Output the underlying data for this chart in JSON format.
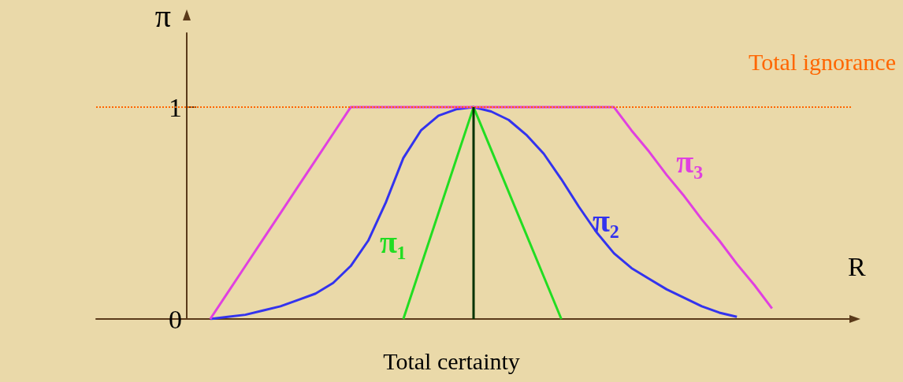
{
  "chart_data": {
    "type": "line",
    "xlabel": "R",
    "ylabel": "π",
    "annotations": [
      "Total certainty"
    ],
    "categories": [
      null,
      null,
      null,
      null,
      null,
      null,
      null,
      null,
      null,
      null,
      null,
      null,
      null,
      null,
      null,
      null,
      null,
      null,
      null,
      null,
      null,
      null,
      null,
      null,
      null,
      null,
      null,
      null,
      null,
      null,
      null,
      null,
      null,
      null,
      null,
      null,
      null,
      null,
      null,
      null,
      null,
      null,
      null
    ],
    "series": [
      {
        "name": "π₁",
        "color": "#22dd22",
        "values": [
          null,
          null,
          null,
          null,
          null,
          null,
          null,
          null,
          null,
          null,
          null,
          null,
          null,
          null,
          null,
          null,
          null,
          0,
          0.25,
          0.5,
          0.75,
          1,
          0.8,
          0.6,
          0.4,
          0.2,
          0,
          null,
          null,
          null,
          null,
          null,
          null,
          null,
          null,
          null,
          null,
          null,
          null,
          null,
          null,
          null,
          null
        ]
      },
      {
        "name": "π₂",
        "color": "#3333ee",
        "values": [
          null,
          null,
          null,
          null,
          null,
          null,
          0,
          0.01,
          0.02,
          0.04,
          0.06,
          0.09,
          0.12,
          0.17,
          0.25,
          0.37,
          0.55,
          0.76,
          0.89,
          0.96,
          0.99,
          1,
          0.98,
          0.94,
          0.87,
          0.78,
          0.66,
          0.53,
          0.41,
          0.31,
          0.24,
          0.19,
          0.14,
          0.1,
          0.06,
          0.03,
          0.01,
          null,
          null,
          null,
          null,
          null,
          null
        ]
      },
      {
        "name": "π₃",
        "color": "#e040e0",
        "values": [
          null,
          null,
          null,
          null,
          null,
          null,
          0,
          0.125,
          0.25,
          0.375,
          0.5,
          0.625,
          0.75,
          0.875,
          1,
          1,
          1,
          1,
          1,
          1,
          1,
          1,
          1,
          1,
          1,
          1,
          1,
          1,
          1,
          1,
          0.89,
          0.79,
          0.68,
          0.58,
          0.47,
          0.37,
          0.26,
          0.16,
          0.05,
          null,
          null,
          null,
          null
        ]
      },
      {
        "type": "bar",
        "color": "#003300",
        "values": [
          null,
          null,
          null,
          null,
          null,
          null,
          null,
          null,
          null,
          null,
          null,
          null,
          null,
          null,
          null,
          null,
          null,
          null,
          null,
          null,
          null,
          1,
          null,
          null,
          null,
          null,
          null,
          null,
          null,
          null,
          null,
          null,
          null,
          null,
          null,
          null,
          null,
          null,
          null,
          null,
          null,
          null,
          null
        ]
      }
    ],
    "ylim": [
      0,
      1.35
    ],
    "yticks": [
      0,
      1
    ],
    "grid": false,
    "legend": false,
    "marker": "none",
    "line_style": "solid",
    "ref_lines": [
      {
        "axis": "y",
        "value": 1,
        "label": "Total ignorance",
        "color": "#ff6600",
        "line_style": "dotted"
      }
    ]
  }
}
